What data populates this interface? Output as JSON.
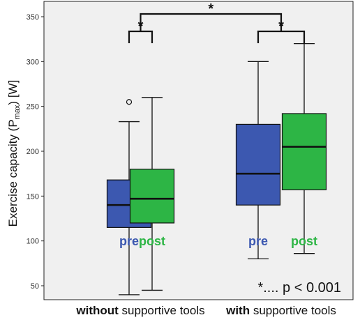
{
  "chart_data": {
    "type": "box",
    "ylabel_prefix": "Exercise capacity (P",
    "ylabel_sub": "max",
    "ylabel_suffix": ") [W]",
    "ylim": [
      35,
      365
    ],
    "yticks": [
      50,
      100,
      150,
      200,
      250,
      300,
      350
    ],
    "groups": [
      {
        "bold": "without",
        "rest": " supportive tools"
      },
      {
        "bold": "with",
        "rest": " supportive tools"
      }
    ],
    "series": [
      {
        "name": "pre",
        "color": "#3c58b0"
      },
      {
        "name": "post",
        "color": "#2db545"
      }
    ],
    "boxes": [
      {
        "group": 0,
        "series": 0,
        "min": 40,
        "q1": 115,
        "median": 140,
        "q3": 168,
        "max": 233,
        "outliers": [
          255
        ]
      },
      {
        "group": 0,
        "series": 1,
        "min": 45,
        "q1": 120,
        "median": 147,
        "q3": 180,
        "max": 260,
        "outliers": []
      },
      {
        "group": 1,
        "series": 0,
        "min": 80,
        "q1": 140,
        "median": 175,
        "q3": 230,
        "max": 300,
        "outliers": []
      },
      {
        "group": 1,
        "series": 1,
        "min": 86,
        "q1": 157,
        "median": 205,
        "q3": 242,
        "max": 320,
        "outliers": []
      }
    ],
    "significance": [
      {
        "label": "*",
        "from": {
          "group": 0,
          "series": 0
        },
        "to": {
          "group": 0,
          "series": 1
        }
      },
      {
        "label": "*",
        "from": {
          "group": 1,
          "series": 0
        },
        "to": {
          "group": 1,
          "series": 1
        }
      },
      {
        "label": "*",
        "from": {
          "group": 0,
          "series": "mid"
        },
        "to": {
          "group": 1,
          "series": "mid"
        }
      }
    ],
    "annotation": "*.... p < 0.001",
    "grid": false,
    "background": "#f0f0f0"
  }
}
